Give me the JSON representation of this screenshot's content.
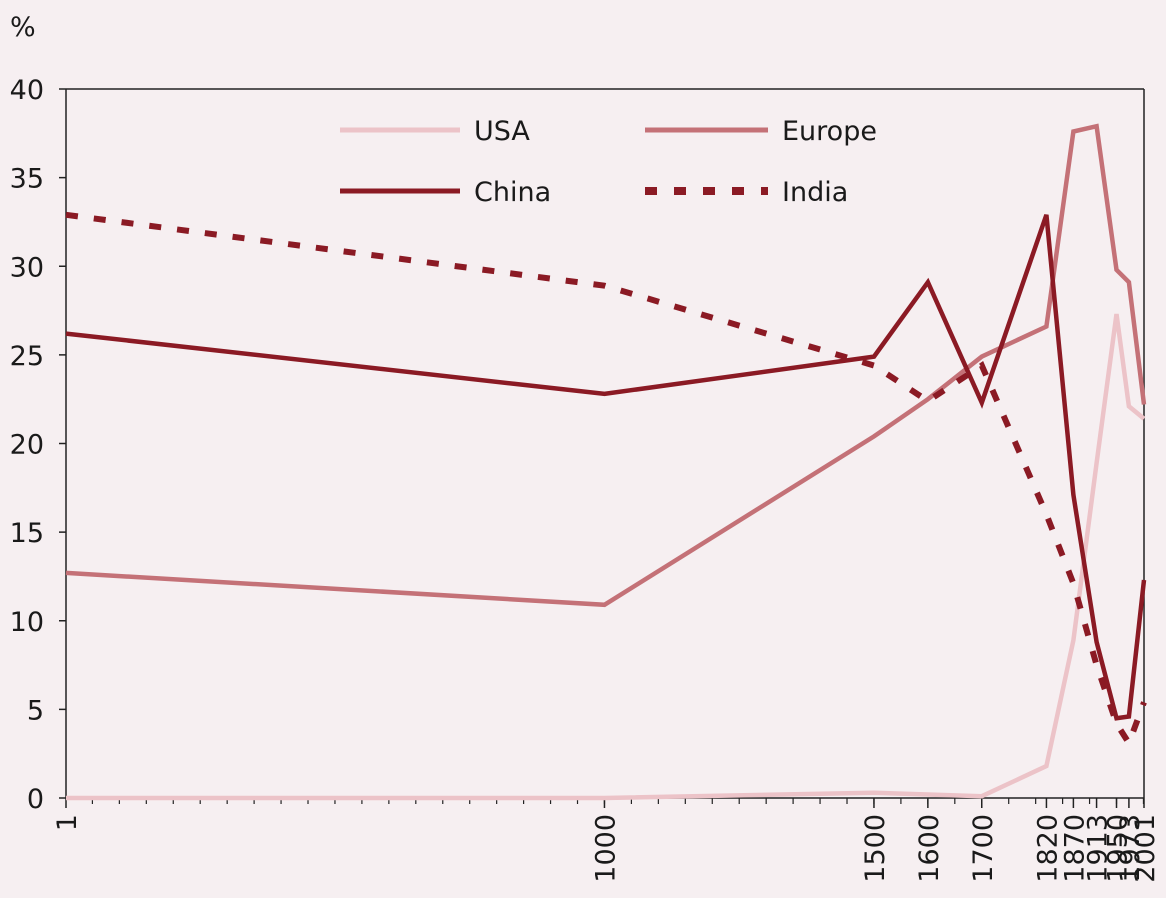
{
  "chart_data": {
    "type": "line",
    "title": "",
    "ylabel": "%",
    "xlabel": "",
    "ylim": [
      0,
      40
    ],
    "yticks": [
      0,
      5,
      10,
      15,
      20,
      25,
      30,
      35,
      40
    ],
    "x": [
      1,
      1000,
      1500,
      1600,
      1700,
      1820,
      1870,
      1913,
      1950,
      1973,
      2001
    ],
    "xtick_labels": [
      "1",
      "1000",
      "1500",
      "1600",
      "1700",
      "1820",
      "1870",
      "1913",
      "1950",
      "1973",
      "2001"
    ],
    "grid": false,
    "legend_position": "top",
    "series": [
      {
        "name": "USA",
        "color": "#ecc3c8",
        "style": "solid",
        "values": [
          0,
          0,
          0.3,
          0.2,
          0.1,
          1.8,
          8.9,
          18.9,
          27.3,
          22.1,
          21.4
        ]
      },
      {
        "name": "Europe",
        "color": "#c47177",
        "style": "solid",
        "values": [
          12.7,
          10.9,
          20.4,
          22.5,
          24.9,
          26.6,
          37.6,
          37.9,
          29.8,
          29.1,
          22.2
        ]
      },
      {
        "name": "China",
        "color": "#8b1a24",
        "style": "solid",
        "values": [
          26.2,
          22.8,
          24.9,
          29.1,
          22.3,
          32.9,
          17.1,
          8.8,
          4.5,
          4.6,
          12.3
        ]
      },
      {
        "name": "India",
        "color": "#8b1a24",
        "style": "dashed",
        "values": [
          32.9,
          28.9,
          24.4,
          22.4,
          24.4,
          16.0,
          12.1,
          7.5,
          4.2,
          3.1,
          5.4
        ]
      }
    ]
  }
}
